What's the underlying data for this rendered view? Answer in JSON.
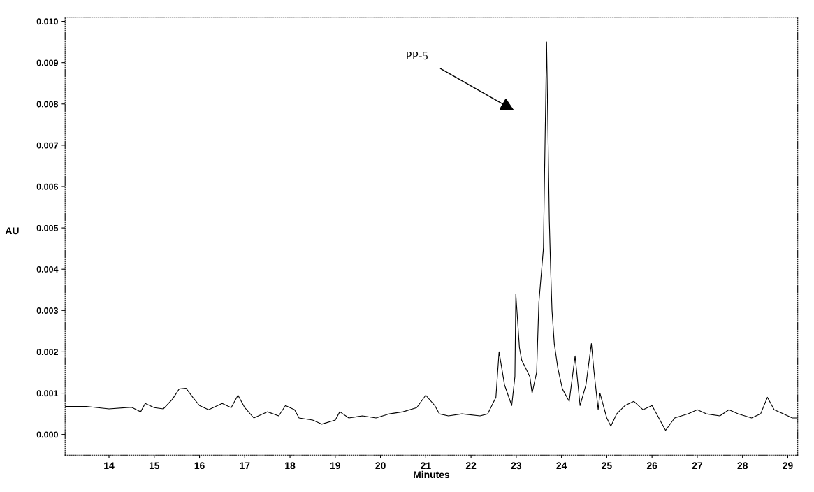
{
  "chart_data": {
    "type": "line",
    "xlabel": "Minutes",
    "ylabel": "AU",
    "xlim": [
      13.03,
      29.22
    ],
    "ylim": [
      -0.0005,
      0.0101
    ],
    "xticks": [
      14,
      15,
      16,
      17,
      18,
      19,
      20,
      21,
      22,
      23,
      24,
      25,
      26,
      27,
      28,
      29
    ],
    "yticks": [
      {
        "value": 0,
        "label": "0.000"
      },
      {
        "value": 0.001,
        "label": "0.001"
      },
      {
        "value": 0.002,
        "label": "0.002"
      },
      {
        "value": 0.003,
        "label": "0.003"
      },
      {
        "value": 0.004,
        "label": "0.004"
      },
      {
        "value": 0.005,
        "label": "0.005"
      },
      {
        "value": 0.006,
        "label": "0.006"
      },
      {
        "value": 0.007,
        "label": "0.007"
      },
      {
        "value": 0.008,
        "label": "0.008"
      },
      {
        "value": 0.009,
        "label": "0.009"
      },
      {
        "value": 0.01,
        "label": "0.010"
      }
    ],
    "grid": false,
    "line_style": "solid",
    "marker": "none",
    "annotations": [
      "PP-5"
    ],
    "series": [
      {
        "color": "#000000",
        "x": [
          13.03,
          13.5,
          14.0,
          14.5,
          14.7,
          14.8,
          15.0,
          15.2,
          15.4,
          15.55,
          15.7,
          15.85,
          16.0,
          16.2,
          16.5,
          16.7,
          16.85,
          17.0,
          17.2,
          17.5,
          17.75,
          17.9,
          18.1,
          18.2,
          18.5,
          18.7,
          19.0,
          19.1,
          19.3,
          19.6,
          19.9,
          20.2,
          20.5,
          20.8,
          21.0,
          21.2,
          21.3,
          21.5,
          21.8,
          22.2,
          22.37,
          22.55,
          22.62,
          22.74,
          22.9,
          22.97,
          22.99,
          23.07,
          23.12,
          23.3,
          23.35,
          23.45,
          23.5,
          23.6,
          23.67,
          23.73,
          23.76,
          23.79,
          23.84,
          23.92,
          24.02,
          24.17,
          24.3,
          24.41,
          24.54,
          24.66,
          24.72,
          24.81,
          24.85,
          25.0,
          25.09,
          25.22,
          25.4,
          25.5,
          25.6,
          25.8,
          26.0,
          26.1,
          26.2,
          26.3,
          26.5,
          26.8,
          27.0,
          27.2,
          27.5,
          27.7,
          27.9,
          28.2,
          28.4,
          28.55,
          28.7,
          28.9,
          29.1,
          29.2
        ],
        "values": [
          0.00068,
          0.00068,
          0.00062,
          0.00066,
          0.00055,
          0.00075,
          0.00065,
          0.00062,
          0.00085,
          0.0011,
          0.00112,
          0.0009,
          0.0007,
          0.0006,
          0.00075,
          0.00065,
          0.00095,
          0.00065,
          0.0004,
          0.00055,
          0.00045,
          0.0007,
          0.0006,
          0.0004,
          0.00035,
          0.00025,
          0.00035,
          0.00055,
          0.0004,
          0.00045,
          0.0004,
          0.0005,
          0.00055,
          0.00065,
          0.00095,
          0.0007,
          0.0005,
          0.00045,
          0.0005,
          0.00045,
          0.0005,
          0.0009,
          0.002,
          0.0012,
          0.0007,
          0.0014,
          0.0034,
          0.0021,
          0.0018,
          0.0014,
          0.001,
          0.0015,
          0.0032,
          0.0045,
          0.0095,
          0.0052,
          0.004,
          0.003,
          0.0022,
          0.0016,
          0.0011,
          0.0008,
          0.0019,
          0.0007,
          0.0012,
          0.0022,
          0.0015,
          0.0006,
          0.001,
          0.0004,
          0.0002,
          0.0005,
          0.0007,
          0.00075,
          0.0008,
          0.0006,
          0.0007,
          0.0005,
          0.0003,
          0.0001,
          0.0004,
          0.0005,
          0.0006,
          0.0005,
          0.00045,
          0.0006,
          0.0005,
          0.0004,
          0.0005,
          0.0009,
          0.0006,
          0.0005,
          0.0004,
          0.0004
        ]
      }
    ]
  }
}
